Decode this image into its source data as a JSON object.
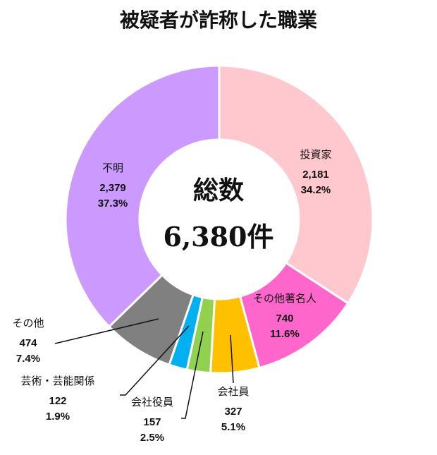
{
  "title": "被疑者が詐称した職業",
  "center": {
    "label": "総数",
    "total": "6,380件"
  },
  "chart_data": {
    "type": "pie",
    "donut": true,
    "total": 6380,
    "slices": [
      {
        "label": "投資家",
        "value": 2181,
        "value_text": "2,181",
        "percent": "34.2%",
        "color": "#FFC7CE"
      },
      {
        "label": "その他著名人",
        "value": 740,
        "value_text": "740",
        "percent": "11.6%",
        "color": "#FF66CC"
      },
      {
        "label": "会社員",
        "value": 327,
        "value_text": "327",
        "percent": "5.1%",
        "color": "#FFC000"
      },
      {
        "label": "会社役員",
        "value": 157,
        "value_text": "157",
        "percent": "2.5%",
        "color": "#92D050"
      },
      {
        "label": "芸術・芸能関係",
        "value": 122,
        "value_text": "122",
        "percent": "1.9%",
        "color": "#00B0F0"
      },
      {
        "label": "その他",
        "value": 474,
        "value_text": "474",
        "percent": "7.4%",
        "color": "#808080"
      },
      {
        "label": "不明",
        "value": 2379,
        "value_text": "2,379",
        "percent": "37.3%",
        "color": "#CC99FF"
      }
    ]
  }
}
